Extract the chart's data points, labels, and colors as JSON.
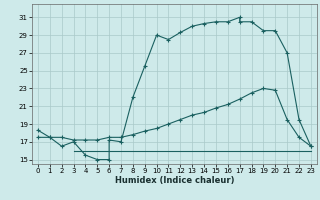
{
  "xlabel": "Humidex (Indice chaleur)",
  "bg_color": "#ceeaea",
  "grid_color": "#aacaca",
  "line_color": "#1a6060",
  "xlim": [
    -0.5,
    23.5
  ],
  "ylim": [
    14.5,
    32.5
  ],
  "yticks": [
    15,
    17,
    19,
    21,
    23,
    25,
    27,
    29,
    31
  ],
  "xticks": [
    0,
    1,
    2,
    3,
    4,
    5,
    6,
    7,
    8,
    9,
    10,
    11,
    12,
    13,
    14,
    15,
    16,
    17,
    18,
    19,
    20,
    21,
    22,
    23
  ],
  "c1x": [
    0,
    1,
    2,
    3,
    4,
    5,
    6,
    6,
    7,
    8,
    9,
    10,
    11,
    12,
    13,
    14,
    15,
    16,
    17,
    17,
    18,
    19,
    20,
    21,
    22,
    23
  ],
  "c1y": [
    18.3,
    17.5,
    16.5,
    17.0,
    15.5,
    15.0,
    15.0,
    17.2,
    17.0,
    22.0,
    25.5,
    29.0,
    28.5,
    29.3,
    30.0,
    30.3,
    30.5,
    30.5,
    31.0,
    30.5,
    30.5,
    29.5,
    29.5,
    27.0,
    19.5,
    16.5
  ],
  "c2x": [
    3,
    22,
    23
  ],
  "c2y": [
    16.0,
    16.0,
    16.0
  ],
  "c3x": [
    0,
    1,
    2,
    3,
    4,
    5,
    6,
    7,
    8,
    9,
    10,
    11,
    12,
    13,
    14,
    15,
    16,
    17,
    18,
    19,
    20,
    21,
    22,
    23
  ],
  "c3y": [
    17.5,
    17.5,
    17.5,
    17.2,
    17.2,
    17.2,
    17.5,
    17.5,
    17.8,
    18.2,
    18.5,
    19.0,
    19.5,
    20.0,
    20.3,
    20.8,
    21.2,
    21.8,
    22.5,
    23.0,
    22.8,
    19.5,
    17.5,
    16.5
  ]
}
